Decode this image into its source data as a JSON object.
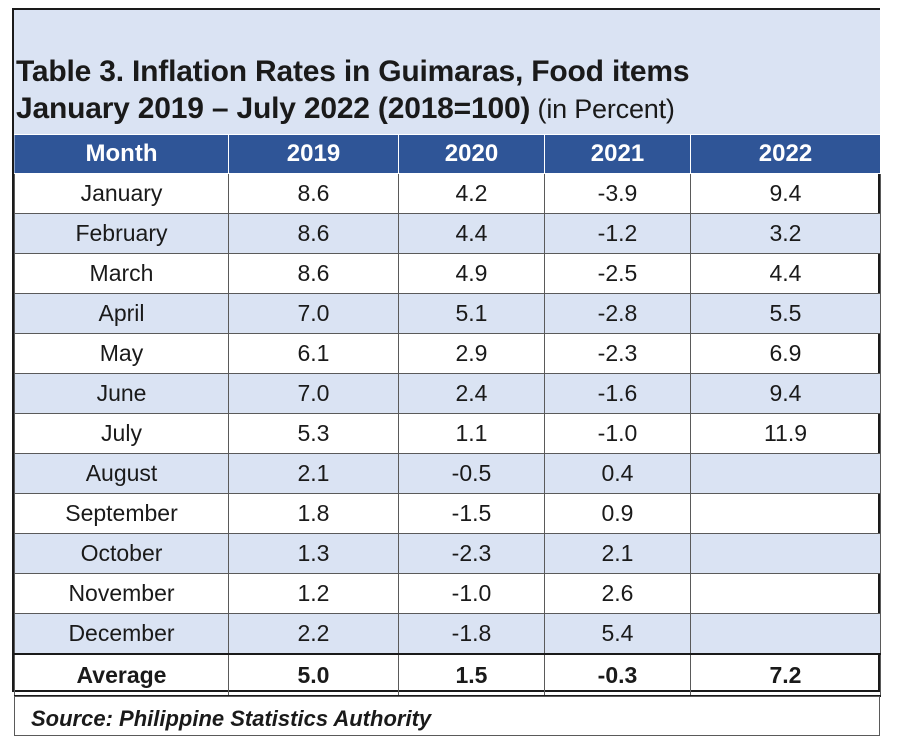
{
  "title": {
    "line1": "Table 3. Inflation Rates in Guimaras, Food items",
    "line2_bold": "January 2019 – July 2022 (2018=100)",
    "line2_unit": " (in Percent)"
  },
  "table": {
    "headers": [
      "Month",
      "2019",
      "2020",
      "2021",
      "2022"
    ],
    "rows": [
      [
        "January",
        "8.6",
        "4.2",
        "-3.9",
        "9.4"
      ],
      [
        "February",
        "8.6",
        "4.4",
        "-1.2",
        "3.2"
      ],
      [
        "March",
        "8.6",
        "4.9",
        "-2.5",
        "4.4"
      ],
      [
        "April",
        "7.0",
        "5.1",
        "-2.8",
        "5.5"
      ],
      [
        "May",
        "6.1",
        "2.9",
        "-2.3",
        "6.9"
      ],
      [
        "June",
        "7.0",
        "2.4",
        "-1.6",
        "9.4"
      ],
      [
        "July",
        "5.3",
        "1.1",
        "-1.0",
        "11.9"
      ],
      [
        "August",
        "2.1",
        "-0.5",
        "0.4",
        ""
      ],
      [
        "September",
        "1.8",
        "-1.5",
        "0.9",
        ""
      ],
      [
        "October",
        "1.3",
        "-2.3",
        "2.1",
        ""
      ],
      [
        "November",
        "1.2",
        "-1.0",
        "2.6",
        ""
      ],
      [
        "December",
        "2.2",
        "-1.8",
        "5.4",
        ""
      ]
    ],
    "average": [
      "Average",
      "5.0",
      "1.5",
      "-0.3",
      "7.2"
    ]
  },
  "source": "Source: Philippine Statistics Authority",
  "colors": {
    "header_bg": "#2f5597",
    "band_bg": "#dae3f3"
  }
}
